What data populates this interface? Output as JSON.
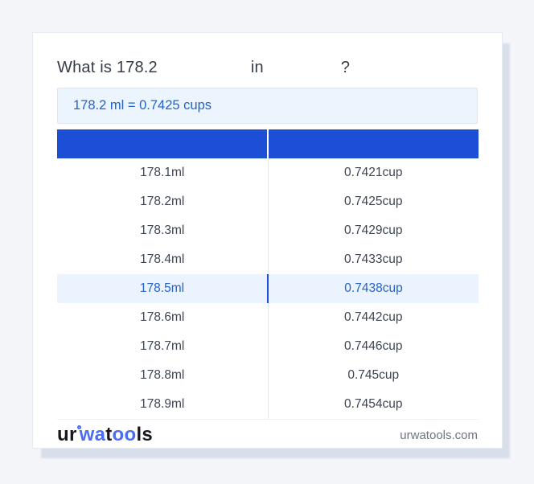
{
  "question": {
    "prefix": "What is 178.2",
    "connector": "in",
    "suffix": "?"
  },
  "result": {
    "text": "178.2 ml = 0.7425 cups"
  },
  "table": {
    "headers": [
      "",
      ""
    ],
    "highlighted_index": 4,
    "rows": [
      {
        "ml": "178.1ml",
        "cup": "0.7421cup"
      },
      {
        "ml": "178.2ml",
        "cup": "0.7425cup"
      },
      {
        "ml": "178.3ml",
        "cup": "0.7429cup"
      },
      {
        "ml": "178.4ml",
        "cup": "0.7433cup"
      },
      {
        "ml": "178.5ml",
        "cup": "0.7438cup"
      },
      {
        "ml": "178.6ml",
        "cup": "0.7442cup"
      },
      {
        "ml": "178.7ml",
        "cup": "0.7446cup"
      },
      {
        "ml": "178.8ml",
        "cup": "0.745cup"
      },
      {
        "ml": "178.9ml",
        "cup": "0.7454cup"
      }
    ]
  },
  "footer": {
    "logo": {
      "part1": "ur",
      "part2": "wa",
      "part3": "t",
      "part4": "oo",
      "part5": "ls"
    },
    "site": "urwatools.com"
  },
  "colors": {
    "header_blue": "#1d4fd6",
    "highlight_bg": "#ebf3fe",
    "highlight_text": "#2563c9",
    "highlight_divider": "#1d4ed8",
    "result_bg": "#ecf4fd",
    "result_text": "#2563c5",
    "logo_blue": "#4a6cf7",
    "page_bg": "#f3f5f9"
  }
}
